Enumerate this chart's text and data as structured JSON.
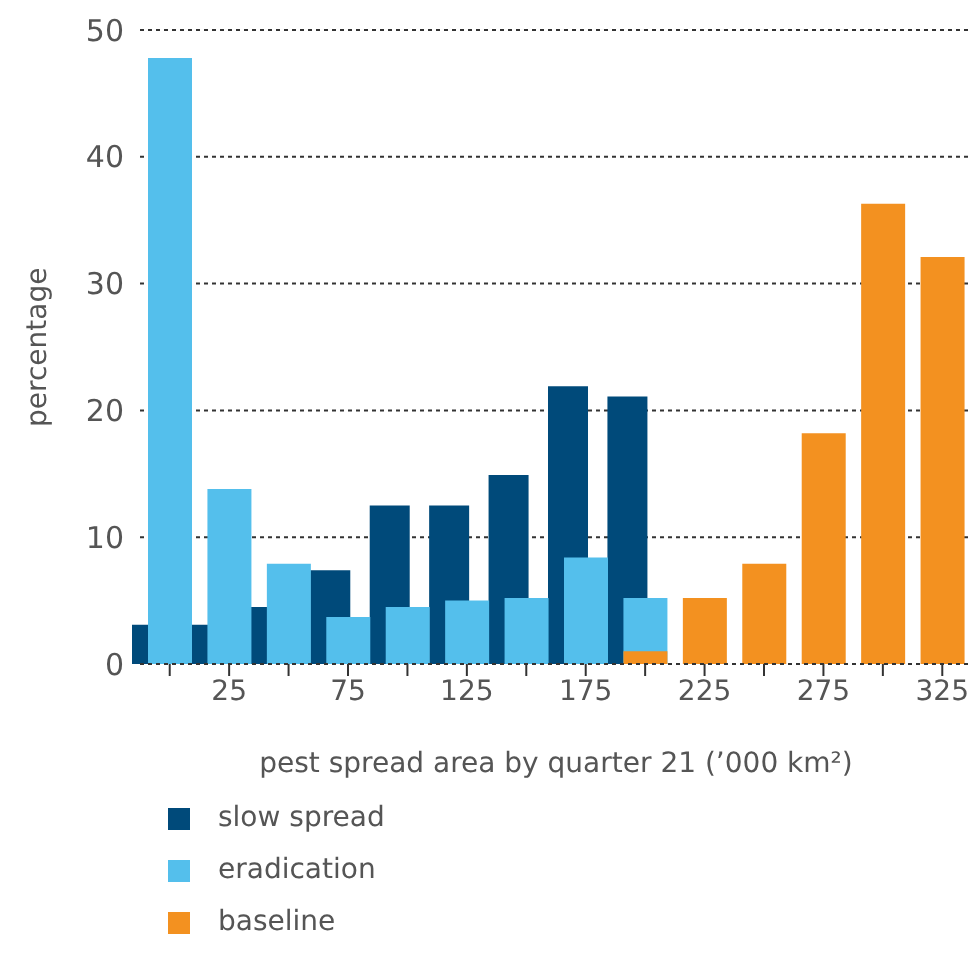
{
  "chart_data": {
    "type": "bar",
    "xlabel": "pest spread area by quarter 21 (’000 km²)",
    "ylabel": "percentage",
    "categories": [
      null,
      "25",
      null,
      "75",
      null,
      "125",
      null,
      "175",
      null,
      "225",
      null,
      "275",
      null,
      "325"
    ],
    "series": [
      {
        "name": "slow spread",
        "color": "#004a7a",
        "values": [
          3.1,
          3.1,
          4.5,
          7.4,
          12.5,
          12.5,
          14.9,
          21.9,
          21.1,
          null,
          null,
          null,
          null,
          null
        ]
      },
      {
        "name": "eradication",
        "color": "#54bfec",
        "values": [
          47.8,
          13.8,
          7.9,
          3.7,
          4.5,
          5.0,
          5.2,
          8.4,
          5.2,
          null,
          null,
          null,
          null,
          null
        ]
      },
      {
        "name": "baseline",
        "color": "#f39120",
        "values": [
          null,
          null,
          null,
          null,
          null,
          null,
          null,
          null,
          1.0,
          5.2,
          7.9,
          18.2,
          36.3,
          32.1
        ]
      }
    ],
    "ylim": [
      0,
      50
    ],
    "yticks": [
      0,
      10,
      20,
      30,
      40,
      50
    ],
    "grid": "y",
    "legend": "bottom"
  }
}
